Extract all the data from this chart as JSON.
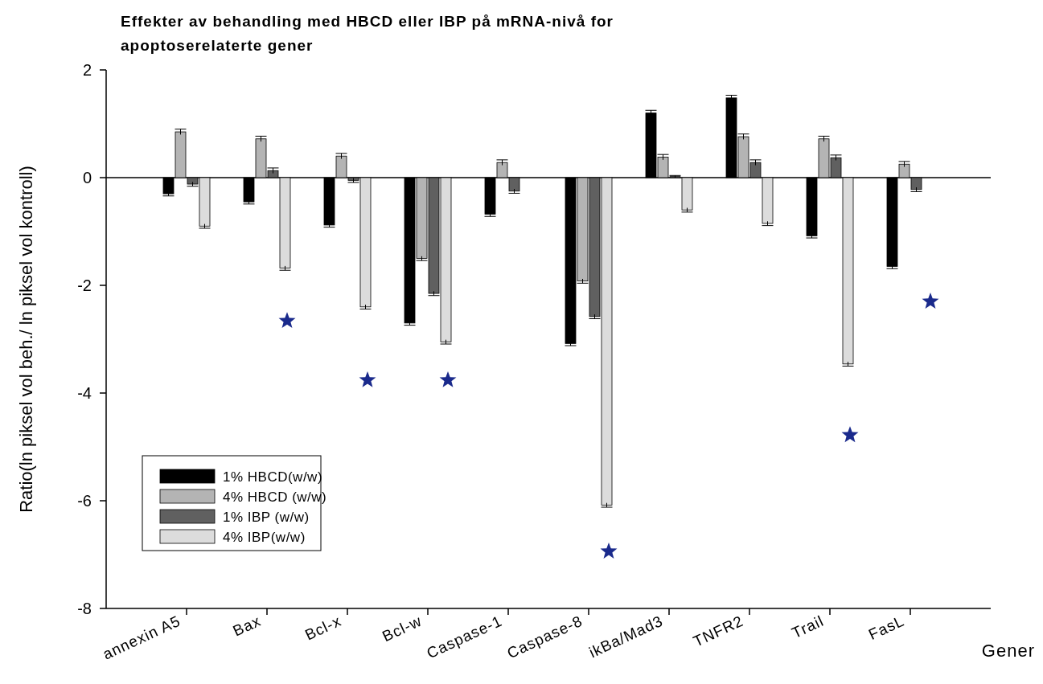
{
  "chart_data": {
    "type": "bar",
    "title": "Effekter av behandling med HBCD eller IBP på mRNA-nivå for apoptoserelaterte gener",
    "xlabel": "Gener",
    "ylabel": "Ratio(ln piksel vol beh./ ln piksel vol kontroll)",
    "categories": [
      "annexin A5",
      "Bax",
      "Bcl-x",
      "Bcl-w",
      "Caspase-1",
      "Caspase-8",
      "ikBa/Mad3",
      "TNFR2",
      "Trail",
      "FasL"
    ],
    "series": [
      {
        "name": "1% HBCD(w/w)",
        "color": "#000000",
        "values": [
          -0.3,
          -0.45,
          -0.88,
          -2.7,
          -0.68,
          -3.08,
          1.2,
          1.48,
          -1.08,
          -1.65
        ],
        "errors": [
          0.04,
          0.04,
          0.04,
          0.04,
          0.04,
          0.04,
          0.05,
          0.05,
          0.04,
          0.04
        ]
      },
      {
        "name": "4% HBCD (w/w)",
        "color": "#b4b4b4",
        "values": [
          0.85,
          0.72,
          0.4,
          -1.5,
          0.28,
          -1.92,
          0.38,
          0.76,
          0.72,
          0.25
        ],
        "errors": [
          0.05,
          0.05,
          0.05,
          0.04,
          0.05,
          0.04,
          0.05,
          0.05,
          0.05,
          0.05
        ]
      },
      {
        "name": "1% IBP (w/w)",
        "color": "#606060",
        "values": [
          -0.12,
          0.13,
          -0.05,
          -2.15,
          -0.25,
          -2.58,
          0.02,
          0.28,
          0.37,
          -0.22
        ],
        "errors": [
          0.04,
          0.05,
          0.04,
          0.04,
          0.04,
          0.04,
          0.02,
          0.05,
          0.05,
          0.04
        ]
      },
      {
        "name": "4% IBP(w/w)",
        "color": "#dcdcdc",
        "values": [
          -0.9,
          -1.68,
          -2.4,
          -3.05,
          null,
          -6.08,
          -0.6,
          -0.85,
          -3.46,
          null
        ],
        "errors": [
          0.04,
          0.04,
          0.04,
          0.04,
          null,
          0.04,
          0.04,
          0.04,
          0.04,
          null
        ]
      },
      {
        "type": "scatter",
        "marker": "star",
        "color": "#1a2a8c",
        "x": [
          "Bax",
          "Bcl-x",
          "Bcl-w",
          "Caspase-8",
          "Trail",
          "FasL"
        ],
        "values": [
          -2.66,
          -3.76,
          -3.76,
          -6.94,
          -4.78,
          -2.3
        ]
      }
    ],
    "ylim": [
      -8,
      2
    ],
    "yticks": [
      -8,
      -6,
      -4,
      -2,
      0,
      2
    ],
    "grid": false,
    "legend": "bottom left",
    "ref_lines": [
      {
        "axis": "y",
        "value": 0,
        "color": "#000000"
      }
    ]
  }
}
